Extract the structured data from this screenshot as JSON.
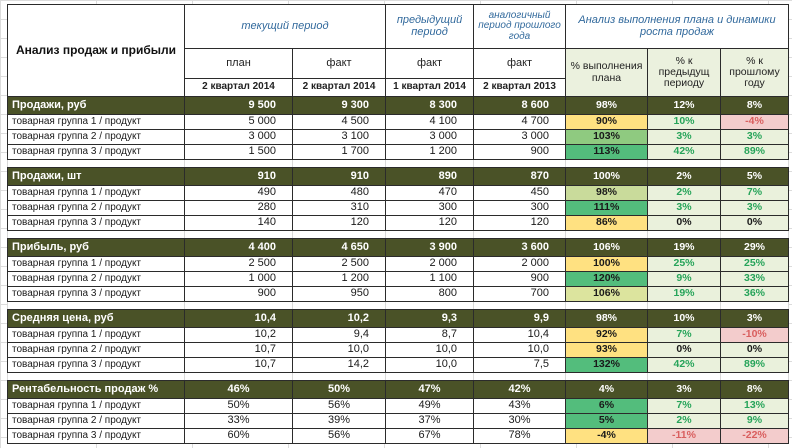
{
  "header": {
    "title": "Анализ продаж и прибыли",
    "current_period": "текущий период",
    "prev_period": "предыдущий период",
    "year_period": "аналогичный период прошлого года",
    "analysis_title": "Анализ выполнения плана и динамики роста продаж",
    "subs": [
      "план",
      "факт",
      "факт",
      "факт"
    ],
    "periods": [
      "2 квартал 2014",
      "2 квартал 2014",
      "1 квартал 2014",
      "2 квартал 2013"
    ],
    "analysis_cols": [
      "% выполнения плана",
      "% к предыдущ периоду",
      "% к прошлому году"
    ]
  },
  "colors": {
    "section_header_bg": "#4a5227",
    "plan_pct_light_green": "#c9db9b",
    "plan_pct_mid_green": "#8fca80",
    "plan_pct_strong_green": "#53bd7c",
    "plan_pct_pale_yellow": "#dce49e",
    "plan_pct_yellow": "#ffe181",
    "delta_pale_green_bg": "#eaf1dc",
    "delta_green_text": "#27a45a",
    "delta_pink_bg": "#f3cccc",
    "delta_red_text": "#d95f5f",
    "header_period_text": "#31699c"
  },
  "sections": [
    {
      "name": "Продажи, руб",
      "align": "right",
      "rows": [
        {
          "type": "total",
          "label": "Продажи, руб",
          "vals": [
            "9 500",
            "9 300",
            "8 300",
            "8 600"
          ],
          "plan": [
            "98%",
            "bg-light"
          ],
          "prev": [
            "12%",
            "t-up"
          ],
          "year": [
            "8%",
            "t-up"
          ]
        },
        {
          "type": "item",
          "label": "товарная группа 1 /  продукт",
          "vals": [
            "5 000",
            "4 500",
            "4 100",
            "4 700"
          ],
          "plan": [
            "90%",
            "bg-yellow"
          ],
          "prev": [
            "10%",
            "t-up"
          ],
          "year": [
            "-4%",
            "t-down"
          ]
        },
        {
          "type": "item",
          "label": "товарная группа 2 /  продукт",
          "vals": [
            "3 000",
            "3 100",
            "3 000",
            "3 000"
          ],
          "plan": [
            "103%",
            "bg-mid"
          ],
          "prev": [
            "3%",
            "t-up"
          ],
          "year": [
            "3%",
            "t-up"
          ]
        },
        {
          "type": "item",
          "label": "товарная группа 3 /  продукт",
          "vals": [
            "1 500",
            "1 700",
            "1 200",
            "900"
          ],
          "plan": [
            "113%",
            "bg-strong"
          ],
          "prev": [
            "42%",
            "t-up"
          ],
          "year": [
            "89%",
            "t-up"
          ]
        }
      ]
    },
    {
      "name": "Продажи, шт",
      "align": "right",
      "rows": [
        {
          "type": "total",
          "label": "Продажи, шт",
          "vals": [
            "910",
            "910",
            "890",
            "870"
          ],
          "plan": [
            "100%",
            "bg-mid"
          ],
          "prev": [
            "2%",
            "t-up"
          ],
          "year": [
            "5%",
            "t-up"
          ]
        },
        {
          "type": "item",
          "label": "товарная группа 1 /  продукт",
          "vals": [
            "490",
            "480",
            "470",
            "450"
          ],
          "plan": [
            "98%",
            "bg-light"
          ],
          "prev": [
            "2%",
            "t-up"
          ],
          "year": [
            "7%",
            "t-up"
          ]
        },
        {
          "type": "item",
          "label": "товарная группа 2 /  продукт",
          "vals": [
            "280",
            "310",
            "300",
            "300"
          ],
          "plan": [
            "111%",
            "bg-strong"
          ],
          "prev": [
            "3%",
            "t-up"
          ],
          "year": [
            "3%",
            "t-up"
          ]
        },
        {
          "type": "item",
          "label": "товарная группа 3 /  продукт",
          "vals": [
            "140",
            "120",
            "120",
            "120"
          ],
          "plan": [
            "86%",
            "bg-yellow"
          ],
          "prev": [
            "0%",
            "t-zero"
          ],
          "year": [
            "0%",
            "t-zero"
          ]
        }
      ]
    },
    {
      "name": "Прибыль, руб",
      "align": "right",
      "rows": [
        {
          "type": "total",
          "label": "Прибыль, руб",
          "vals": [
            "4 400",
            "4 650",
            "3 900",
            "3 600"
          ],
          "plan": [
            "106%",
            "bg-paleyellow"
          ],
          "prev": [
            "19%",
            "t-up"
          ],
          "year": [
            "29%",
            "t-up"
          ]
        },
        {
          "type": "item",
          "label": "товарная группа 1 /  продукт",
          "vals": [
            "2 500",
            "2 500",
            "2 000",
            "2 000"
          ],
          "plan": [
            "100%",
            "bg-yellow"
          ],
          "prev": [
            "25%",
            "t-up"
          ],
          "year": [
            "25%",
            "t-up"
          ]
        },
        {
          "type": "item",
          "label": "товарная группа 2 /  продукт",
          "vals": [
            "1 000",
            "1 200",
            "1 100",
            "900"
          ],
          "plan": [
            "120%",
            "bg-strong"
          ],
          "prev": [
            "9%",
            "t-up"
          ],
          "year": [
            "33%",
            "t-up"
          ]
        },
        {
          "type": "item",
          "label": "товарная группа 3 /  продукт",
          "vals": [
            "900",
            "950",
            "800",
            "700"
          ],
          "plan": [
            "106%",
            "bg-paleyellow"
          ],
          "prev": [
            "19%",
            "t-up"
          ],
          "year": [
            "36%",
            "t-up"
          ]
        }
      ]
    },
    {
      "name": "Средняя цена, руб",
      "align": "right",
      "rows": [
        {
          "type": "total",
          "label": "Средняя цена, руб",
          "vals": [
            "10,4",
            "10,2",
            "9,3",
            "9,9"
          ],
          "plan": [
            "98%",
            "bg-yellow"
          ],
          "prev": [
            "10%",
            "t-up"
          ],
          "year": [
            "3%",
            "t-up"
          ]
        },
        {
          "type": "item",
          "label": "товарная группа 1 /  продукт",
          "vals": [
            "10,2",
            "9,4",
            "8,7",
            "10,4"
          ],
          "plan": [
            "92%",
            "bg-yellow"
          ],
          "prev": [
            "7%",
            "t-up"
          ],
          "year": [
            "-10%",
            "t-down"
          ]
        },
        {
          "type": "item",
          "label": "товарная группа 2 /  продукт",
          "vals": [
            "10,7",
            "10,0",
            "10,0",
            "10,0"
          ],
          "plan": [
            "93%",
            "bg-yellow"
          ],
          "prev": [
            "0%",
            "t-zero"
          ],
          "year": [
            "0%",
            "t-zero"
          ]
        },
        {
          "type": "item",
          "label": "товарная группа 3 /  продукт",
          "vals": [
            "10,7",
            "14,2",
            "10,0",
            "7,5"
          ],
          "plan": [
            "132%",
            "bg-strong"
          ],
          "prev": [
            "42%",
            "t-up"
          ],
          "year": [
            "89%",
            "t-up"
          ]
        }
      ]
    },
    {
      "name": "Рентабельность продаж %",
      "align": "center",
      "rows": [
        {
          "type": "total",
          "label": "Рентабельность продаж %",
          "vals": [
            "46%",
            "50%",
            "47%",
            "42%"
          ],
          "plan": [
            "4%",
            "bg-strong"
          ],
          "prev": [
            "3%",
            "t-up"
          ],
          "year": [
            "8%",
            "t-up"
          ]
        },
        {
          "type": "item",
          "label": "товарная группа 1 /  продукт",
          "vals": [
            "50%",
            "56%",
            "49%",
            "43%"
          ],
          "plan": [
            "6%",
            "bg-strong"
          ],
          "prev": [
            "7%",
            "t-up"
          ],
          "year": [
            "13%",
            "t-up"
          ]
        },
        {
          "type": "item",
          "label": "товарная группа 2 /  продукт",
          "vals": [
            "33%",
            "39%",
            "37%",
            "30%"
          ],
          "plan": [
            "5%",
            "bg-strong"
          ],
          "prev": [
            "2%",
            "t-up"
          ],
          "year": [
            "9%",
            "t-up"
          ]
        },
        {
          "type": "item",
          "label": "товарная группа 3 /  продукт",
          "vals": [
            "60%",
            "56%",
            "67%",
            "78%"
          ],
          "plan": [
            "-4%",
            "bg-yellow"
          ],
          "prev": [
            "-11%",
            "t-down"
          ],
          "year": [
            "-22%",
            "t-down"
          ]
        }
      ]
    }
  ]
}
